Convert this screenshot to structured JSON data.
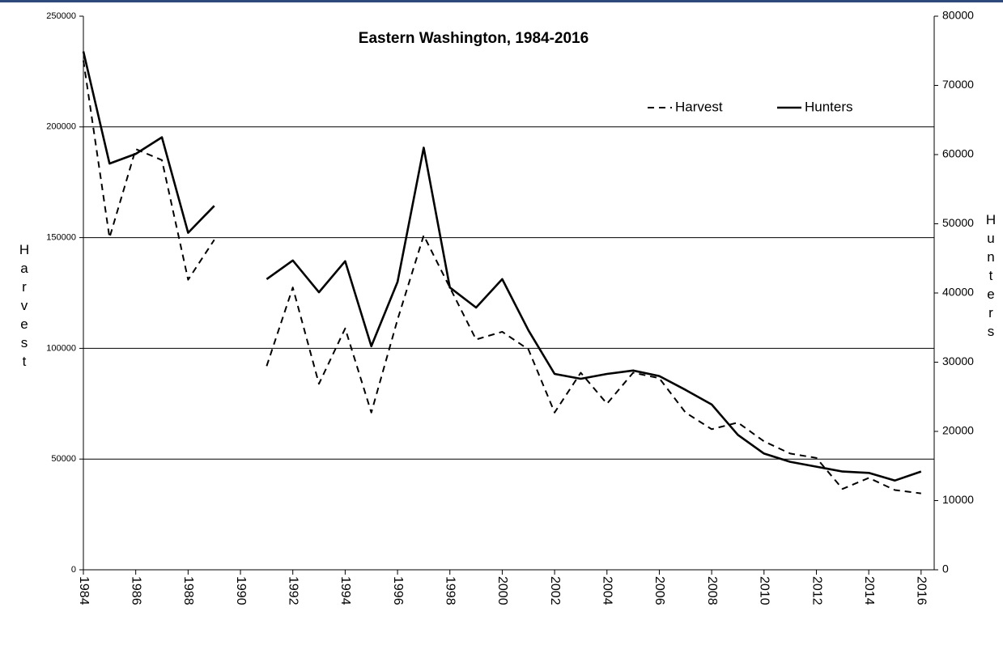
{
  "chart_data": {
    "type": "line",
    "title": "Eastern Washington, 1984-2016",
    "y_label": "Harvest",
    "y2_label": "Hunters",
    "x": [
      1984,
      1985,
      1986,
      1987,
      1988,
      1989,
      1990,
      1991,
      1992,
      1993,
      1994,
      1995,
      1996,
      1997,
      1998,
      1999,
      2000,
      2001,
      2002,
      2003,
      2004,
      2005,
      2006,
      2007,
      2008,
      2009,
      2010,
      2011,
      2012,
      2013,
      2014,
      2015,
      2016
    ],
    "series": [
      {
        "name": "Harvest",
        "color": "#000000",
        "dash": true,
        "axis": "y",
        "values": [
          230000,
          150000,
          190000,
          185000,
          131000,
          149000,
          null,
          92000,
          127500,
          84000,
          109000,
          71000,
          113000,
          151000,
          127500,
          104000,
          107500,
          99500,
          71000,
          89000,
          75000,
          89000,
          86500,
          71000,
          63500,
          66500,
          58000,
          52500,
          50500,
          36500,
          41500,
          36000,
          34500
        ]
      },
      {
        "name": "Hunters",
        "color": "#000000",
        "dash": false,
        "axis": "y2",
        "values": [
          74900,
          58700,
          60100,
          62500,
          48700,
          52600,
          null,
          42000,
          44700,
          40100,
          44600,
          32300,
          41600,
          61000,
          40800,
          37900,
          42000,
          34600,
          28300,
          27600,
          28300,
          28800,
          28000,
          26000,
          23900,
          19500,
          16800,
          15600,
          14900,
          14200,
          14000,
          12900,
          14200
        ]
      }
    ],
    "xlim": [
      1984,
      2016.5
    ],
    "xticks": [
      1984,
      1986,
      1988,
      1990,
      1992,
      1994,
      1996,
      1998,
      2000,
      2002,
      2004,
      2006,
      2008,
      2010,
      2012,
      2014,
      2016
    ],
    "ylim": [
      0,
      250000
    ],
    "yticks": [
      0,
      50000,
      100000,
      150000,
      200000,
      250000
    ],
    "y2lim": [
      0,
      80000
    ],
    "y2ticks": [
      0,
      10000,
      20000,
      30000,
      40000,
      50000,
      60000,
      70000,
      80000
    ],
    "grid": true,
    "legend": "upper right"
  }
}
